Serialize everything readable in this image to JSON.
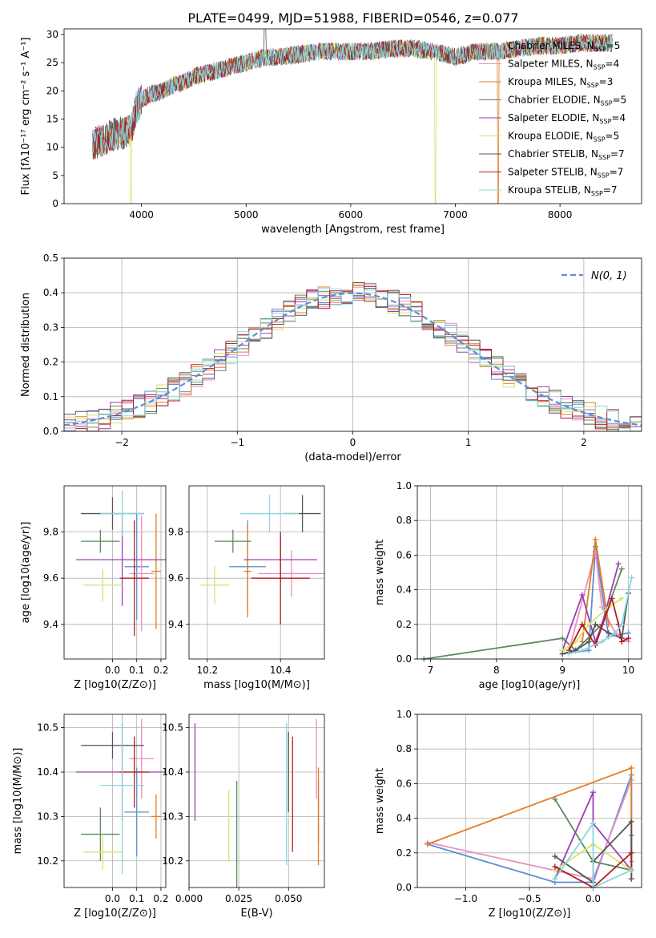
{
  "figure_title": "PLATE=0499, MJD=51988, FIBERID=0546, z=0.077",
  "colors": {
    "Chabrier MILES": "#5b8fd6",
    "Salpeter MILES": "#e98fc2",
    "Kroupa MILES": "#e37c24",
    "Chabrier ELODIE": "#5d8a5d",
    "Salpeter ELODIE": "#9a3fb3",
    "Kroupa ELODIE": "#d7e46a",
    "Chabrier STELIB": "#555555",
    "Salpeter STELIB": "#b01f1f",
    "Kroupa STELIB": "#8ad6dc"
  },
  "legend_spectrum": [
    {
      "name": "Chabrier MILES",
      "nssp": "5"
    },
    {
      "name": "Salpeter MILES",
      "nssp": "4"
    },
    {
      "name": "Kroupa MILES",
      "nssp": "3"
    },
    {
      "name": "Chabrier ELODIE",
      "nssp": "5"
    },
    {
      "name": "Salpeter ELODIE",
      "nssp": "4"
    },
    {
      "name": "Kroupa ELODIE",
      "nssp": "5"
    },
    {
      "name": "Chabrier STELIB",
      "nssp": "7"
    },
    {
      "name": "Salpeter STELIB",
      "nssp": "7"
    },
    {
      "name": "Kroupa STELIB",
      "nssp": "7"
    }
  ],
  "chart_data": [
    {
      "id": "spectrum",
      "type": "line",
      "xlabel": "wavelength [Angstrom, rest frame]",
      "ylabel": "Flux [fλ10⁻¹⁷ erg cm⁻² s⁻¹ A⁻¹]",
      "xlim": [
        3260,
        8780
      ],
      "ylim": [
        0,
        31
      ],
      "xticks": [
        4000,
        5000,
        6000,
        7000,
        8000
      ],
      "yticks": [
        0,
        5,
        10,
        15,
        20,
        25,
        30
      ],
      "grid": false,
      "legend": "right",
      "continuum": {
        "x": [
          3530,
          3600,
          3700,
          3800,
          3900,
          3950,
          4000,
          4100,
          4200,
          4300,
          4400,
          4500,
          4600,
          4700,
          4800,
          4900,
          5000,
          5100,
          5200,
          5300,
          5500,
          5700,
          5900,
          6000,
          6200,
          6400,
          6600,
          6800,
          7000,
          7100,
          7200,
          7300,
          7400,
          7600,
          7800,
          8000,
          8200,
          8400,
          8500
        ],
        "y": [
          10.5,
          11,
          12,
          12.5,
          13,
          17,
          18.5,
          19.5,
          20,
          21,
          21.5,
          22.5,
          23,
          23.5,
          24,
          24.5,
          25,
          25.5,
          26,
          26,
          26.5,
          27,
          27,
          27,
          27,
          27.5,
          27.5,
          27,
          26,
          26.5,
          27,
          27,
          27,
          27.5,
          28,
          28,
          28.5,
          28.5,
          28.5
        ]
      }
    },
    {
      "id": "residuals",
      "type": "bar",
      "xlabel": "(data-model)/error",
      "ylabel": "Normed distribution",
      "xlim": [
        -2.5,
        2.5
      ],
      "ylim": [
        0,
        0.5
      ],
      "xticks": [
        -2,
        -1,
        0,
        1,
        2
      ],
      "yticks": [
        0.0,
        0.1,
        0.2,
        0.3,
        0.4,
        0.5
      ],
      "grid": true,
      "legend": "top-right",
      "reference_curve": "N(0, 1)"
    },
    {
      "id": "z-vs-age",
      "type": "scatter",
      "xlabel": "Z [log10(Z/Z⊙)]",
      "ylabel": "age [log10(age/yr)]",
      "xlim": [
        -0.2,
        0.22
      ],
      "ylim": [
        9.25,
        10.0
      ],
      "xticks": [
        0.0,
        0.1,
        0.2
      ],
      "yticks": [
        9.4,
        9.6,
        9.8
      ],
      "grid": true,
      "points": [
        {
          "series": "Chabrier MILES",
          "x": 0.1,
          "y": 9.65,
          "xerr": 0.05,
          "yerr": 0.23
        },
        {
          "series": "Salpeter MILES",
          "x": 0.12,
          "y": 9.62,
          "xerr": 0.05,
          "yerr": 0.25
        },
        {
          "series": "Kroupa MILES",
          "x": 0.18,
          "y": 9.63,
          "xerr": 0.02,
          "yerr": 0.25
        },
        {
          "series": "Chabrier ELODIE",
          "x": -0.05,
          "y": 9.76,
          "xerr": 0.08,
          "yerr": 0.05
        },
        {
          "series": "Salpeter ELODIE",
          "x": 0.04,
          "y": 9.68,
          "xerr": 0.19,
          "yerr": 0.2
        },
        {
          "series": "Kroupa ELODIE",
          "x": -0.04,
          "y": 9.57,
          "xerr": 0.08,
          "yerr": 0.07
        },
        {
          "series": "Chabrier STELIB",
          "x": 0.0,
          "y": 9.88,
          "xerr": 0.13,
          "yerr": 0.07
        },
        {
          "series": "Salpeter STELIB",
          "x": 0.09,
          "y": 9.6,
          "xerr": 0.06,
          "yerr": 0.25
        },
        {
          "series": "Kroupa STELIB",
          "x": 0.04,
          "y": 9.88,
          "xerr": 0.09,
          "yerr": 0.1
        }
      ]
    },
    {
      "id": "mass-vs-age",
      "type": "scatter",
      "xlabel": "mass [log10(M/M⊙)]",
      "xlim": [
        10.15,
        10.52
      ],
      "ylim": [
        9.25,
        10.0
      ],
      "xticks": [
        10.2,
        10.4
      ],
      "yticks": [
        9.4,
        9.6,
        9.8
      ],
      "grid": true,
      "points": [
        {
          "series": "Chabrier MILES",
          "x": 10.31,
          "y": 9.65,
          "xerr": 0.05,
          "yerr": 0.2
        },
        {
          "series": "Salpeter MILES",
          "x": 10.43,
          "y": 9.62,
          "xerr": 0.09,
          "yerr": 0.1
        },
        {
          "series": "Kroupa MILES",
          "x": 10.31,
          "y": 9.63,
          "xerr": 0.01,
          "yerr": 0.2
        },
        {
          "series": "Chabrier ELODIE",
          "x": 10.27,
          "y": 9.76,
          "xerr": 0.05,
          "yerr": 0.05
        },
        {
          "series": "Salpeter ELODIE",
          "x": 10.4,
          "y": 9.68,
          "xerr": 0.1,
          "yerr": 0.1
        },
        {
          "series": "Kroupa ELODIE",
          "x": 10.22,
          "y": 9.57,
          "xerr": 0.04,
          "yerr": 0.08
        },
        {
          "series": "Chabrier STELIB",
          "x": 10.46,
          "y": 9.88,
          "xerr": 0.05,
          "yerr": 0.08
        },
        {
          "series": "Salpeter STELIB",
          "x": 10.4,
          "y": 9.6,
          "xerr": 0.08,
          "yerr": 0.2
        },
        {
          "series": "Kroupa STELIB",
          "x": 10.37,
          "y": 9.88,
          "xerr": 0.08,
          "yerr": 0.08
        }
      ]
    },
    {
      "id": "age-vs-weight",
      "type": "line",
      "xlabel": "age [log10(age/yr)]",
      "ylabel": "mass weight",
      "xlim": [
        6.8,
        10.2
      ],
      "ylim": [
        0,
        1.0
      ],
      "xticks": [
        7,
        8,
        9,
        10
      ],
      "yticks": [
        0.0,
        0.2,
        0.4,
        0.6,
        0.8,
        1.0
      ],
      "grid": true,
      "series": [
        {
          "name": "Chabrier MILES",
          "x": [
            9.0,
            9.4,
            9.5,
            9.7,
            10.0
          ],
          "y": [
            0.03,
            0.05,
            0.65,
            0.13,
            0.15
          ]
        },
        {
          "name": "Salpeter MILES",
          "x": [
            9.1,
            9.5,
            9.6,
            9.8,
            10.0
          ],
          "y": [
            0.05,
            0.62,
            0.3,
            0.15,
            0.1
          ]
        },
        {
          "name": "Kroupa MILES",
          "x": [
            9.3,
            9.5,
            9.7
          ],
          "y": [
            0.1,
            0.69,
            0.2
          ]
        },
        {
          "name": "Chabrier ELODIE",
          "x": [
            6.9,
            9.0,
            9.2,
            9.6,
            9.9
          ],
          "y": [
            0.0,
            0.12,
            0.05,
            0.2,
            0.52
          ]
        },
        {
          "name": "Salpeter ELODIE",
          "x": [
            9.0,
            9.3,
            9.5,
            9.6,
            9.85
          ],
          "y": [
            0.05,
            0.37,
            0.1,
            0.2,
            0.55
          ]
        },
        {
          "name": "Kroupa ELODIE",
          "x": [
            9.0,
            9.2,
            9.4,
            9.7,
            9.9
          ],
          "y": [
            0.05,
            0.1,
            0.2,
            0.3,
            0.35
          ]
        },
        {
          "name": "Chabrier STELIB",
          "x": [
            9.0,
            9.2,
            9.4,
            9.5,
            9.7,
            9.9,
            10.0
          ],
          "y": [
            0.03,
            0.05,
            0.1,
            0.2,
            0.15,
            0.12,
            0.38
          ]
        },
        {
          "name": "Salpeter STELIB",
          "x": [
            9.1,
            9.3,
            9.5,
            9.75,
            9.85,
            9.9,
            10.0
          ],
          "y": [
            0.05,
            0.2,
            0.08,
            0.35,
            0.2,
            0.1,
            0.12
          ]
        },
        {
          "name": "Kroupa STELIB",
          "x": [
            9.1,
            9.3,
            9.6,
            9.8,
            9.9,
            10.05
          ],
          "y": [
            0.03,
            0.05,
            0.1,
            0.15,
            0.2,
            0.47
          ]
        }
      ]
    },
    {
      "id": "z-vs-mass",
      "type": "scatter",
      "xlabel": "Z [log10(Z/Z⊙)]",
      "ylabel": "mass [log10(M/M⊙)]",
      "xlim": [
        -0.2,
        0.22
      ],
      "ylim": [
        10.14,
        10.53
      ],
      "xticks": [
        0.0,
        0.1,
        0.2
      ],
      "yticks": [
        10.2,
        10.3,
        10.4,
        10.5
      ],
      "grid": true,
      "points": [
        {
          "series": "Chabrier MILES",
          "x": 0.1,
          "y": 10.31,
          "xerr": 0.05,
          "yerr": 0.1
        },
        {
          "series": "Salpeter MILES",
          "x": 0.12,
          "y": 10.43,
          "xerr": 0.05,
          "yerr": 0.09
        },
        {
          "series": "Kroupa MILES",
          "x": 0.18,
          "y": 10.3,
          "xerr": 0.02,
          "yerr": 0.05
        },
        {
          "series": "Chabrier ELODIE",
          "x": -0.05,
          "y": 10.26,
          "xerr": 0.08,
          "yerr": 0.06
        },
        {
          "series": "Salpeter ELODIE",
          "x": 0.04,
          "y": 10.4,
          "xerr": 0.19,
          "yerr": 0.11
        },
        {
          "series": "Kroupa ELODIE",
          "x": -0.04,
          "y": 10.22,
          "xerr": 0.08,
          "yerr": 0.04
        },
        {
          "series": "Chabrier STELIB",
          "x": 0.0,
          "y": 10.46,
          "xerr": 0.13,
          "yerr": 0.03
        },
        {
          "series": "Salpeter STELIB",
          "x": 0.09,
          "y": 10.4,
          "xerr": 0.06,
          "yerr": 0.08
        },
        {
          "series": "Kroupa STELIB",
          "x": 0.04,
          "y": 10.37,
          "xerr": 0.09,
          "yerr": 0.2
        }
      ]
    },
    {
      "id": "ebv-vs-mass",
      "type": "scatter",
      "xlabel": "E(B-V)",
      "xlim": [
        0.0,
        0.068
      ],
      "ylim": [
        10.14,
        10.53
      ],
      "xticks": [
        0.0,
        0.025,
        0.05
      ],
      "xticklabels": [
        "0.000",
        "0.025",
        "0.050"
      ],
      "yticks": [
        10.2,
        10.3,
        10.4,
        10.5
      ],
      "grid": true,
      "points": [
        {
          "series": "Chabrier MILES",
          "x": 0.065,
          "y": 10.31,
          "yerr": 0.07
        },
        {
          "series": "Salpeter MILES",
          "x": 0.064,
          "y": 10.43,
          "yerr": 0.09
        },
        {
          "series": "Kroupa MILES",
          "x": 0.065,
          "y": 10.3,
          "yerr": 0.11
        },
        {
          "series": "Chabrier ELODIE",
          "x": 0.024,
          "y": 10.26,
          "yerr": 0.12
        },
        {
          "series": "Salpeter ELODIE",
          "x": 0.003,
          "y": 10.4,
          "yerr": 0.11
        },
        {
          "series": "Kroupa ELODIE",
          "x": 0.02,
          "y": 10.28,
          "yerr": 0.08
        },
        {
          "series": "Chabrier STELIB",
          "x": 0.05,
          "y": 10.4,
          "yerr": 0.09
        },
        {
          "series": "Salpeter STELIB",
          "x": 0.052,
          "y": 10.35,
          "yerr": 0.13
        },
        {
          "series": "Kroupa STELIB",
          "x": 0.049,
          "y": 10.35,
          "yerr": 0.16
        }
      ]
    },
    {
      "id": "z-vs-weight",
      "type": "line",
      "xlabel": "Z [log10(Z/Z⊙)]",
      "ylabel": "mass weight",
      "xlim": [
        -1.38,
        0.38
      ],
      "ylim": [
        0,
        1.0
      ],
      "xticks": [
        -1.0,
        -0.5,
        0.0
      ],
      "xticklabels": [
        "−1.0",
        "−0.5",
        "0.0"
      ],
      "yticks": [
        0.0,
        0.2,
        0.4,
        0.6,
        0.8,
        1.0
      ],
      "grid": true,
      "series": [
        {
          "name": "Chabrier MILES",
          "x": [
            -1.3,
            -0.3,
            0.0,
            0.3,
            0.3
          ],
          "y": [
            0.25,
            0.03,
            0.03,
            0.65,
            0.1
          ]
        },
        {
          "name": "Salpeter MILES",
          "x": [
            -1.3,
            0.0,
            0.3,
            0.3
          ],
          "y": [
            0.26,
            0.05,
            0.62,
            0.15
          ]
        },
        {
          "name": "Kroupa MILES",
          "x": [
            -1.3,
            0.3,
            0.3
          ],
          "y": [
            0.25,
            0.69,
            0.05
          ]
        },
        {
          "name": "Chabrier ELODIE",
          "x": [
            -0.3,
            0.0,
            0.3,
            0.3
          ],
          "y": [
            0.51,
            0.15,
            0.1,
            0.3
          ]
        },
        {
          "name": "Salpeter ELODIE",
          "x": [
            -0.3,
            0.0,
            0.0,
            0.3
          ],
          "y": [
            0.05,
            0.55,
            0.37,
            0.1
          ]
        },
        {
          "name": "Kroupa ELODIE",
          "x": [
            -0.3,
            0.0,
            0.3
          ],
          "y": [
            0.1,
            0.25,
            0.1
          ]
        },
        {
          "name": "Chabrier STELIB",
          "x": [
            -0.3,
            0.0,
            0.0,
            0.3,
            0.3
          ],
          "y": [
            0.18,
            0.03,
            0.15,
            0.38,
            0.05
          ]
        },
        {
          "name": "Salpeter STELIB",
          "x": [
            -0.3,
            0.0,
            0.3,
            0.3
          ],
          "y": [
            0.12,
            0.0,
            0.2,
            0.1
          ]
        },
        {
          "name": "Kroupa STELIB",
          "x": [
            -0.3,
            0.0,
            0.0,
            0.3
          ],
          "y": [
            0.05,
            0.37,
            0.0,
            0.1
          ]
        }
      ]
    }
  ]
}
